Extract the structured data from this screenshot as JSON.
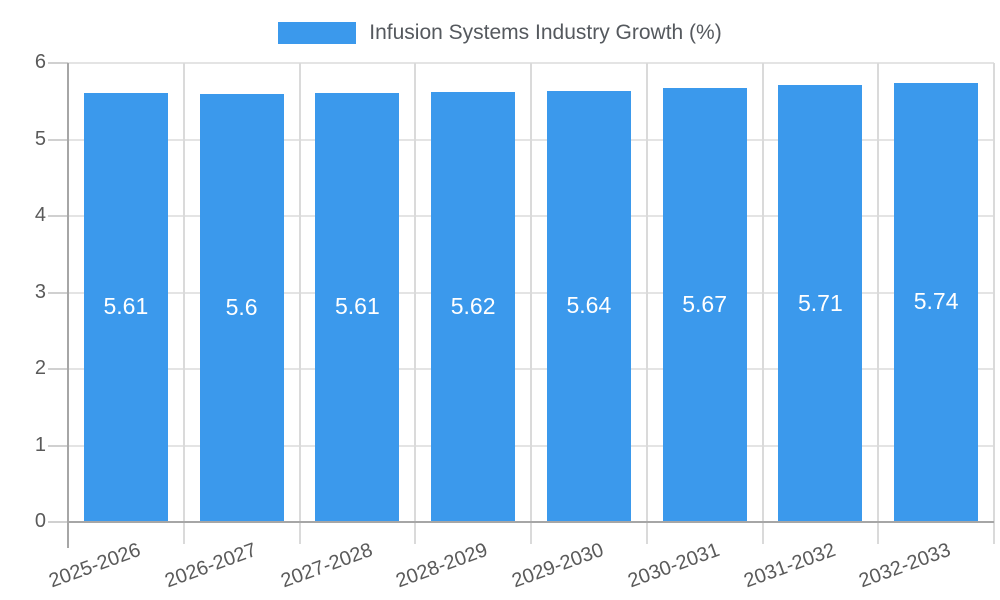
{
  "chart_data": {
    "type": "bar",
    "title": "Infusion Systems Industry Growth (%)",
    "legend_position": "top",
    "categories": [
      "2025-2026",
      "2026-2027",
      "2027-2028",
      "2028-2029",
      "2029-2030",
      "2030-2031",
      "2031-2032",
      "2032-2033"
    ],
    "series": [
      {
        "name": "Infusion Systems Industry Growth (%)",
        "values": [
          5.61,
          5.6,
          5.61,
          5.62,
          5.64,
          5.67,
          5.71,
          5.74
        ],
        "value_labels": [
          "5.61",
          "5.6",
          "5.61",
          "5.62",
          "5.64",
          "5.67",
          "5.71",
          "5.74"
        ]
      }
    ],
    "xlabel": "",
    "ylabel": "",
    "ylim": [
      0,
      6
    ],
    "yticks": [
      "0",
      "1",
      "2",
      "3",
      "4",
      "5",
      "6"
    ],
    "grid": true,
    "x_label_rotation_deg": -20,
    "colors": {
      "bar": "#3b99ec",
      "bar_value_text": "#ffffff",
      "axis_text": "#5a5a5a",
      "title_text": "#55595e",
      "h_gridline": "#e4e4e4",
      "v_gridline": "#dadada",
      "tick": "#d0d0d0",
      "axis_line": "#a6a6a6",
      "background": "#ffffff"
    }
  }
}
